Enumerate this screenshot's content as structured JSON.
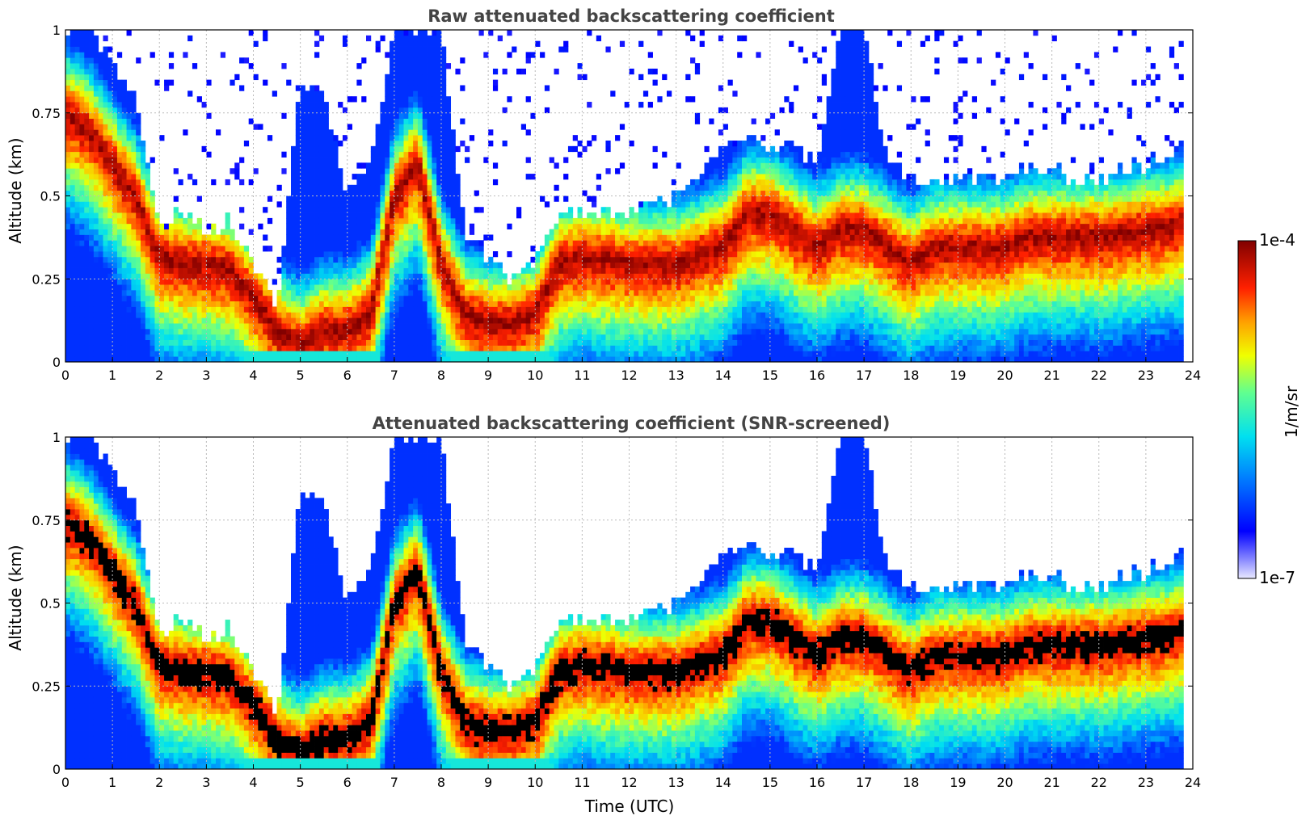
{
  "chart_data": [
    {
      "type": "heatmap",
      "title": "Raw attenuated backscattering coefficient",
      "xlabel": "",
      "ylabel": "Altitude (km)",
      "xlim": [
        0,
        24
      ],
      "ylim": [
        0,
        1
      ],
      "xticks": [
        "0",
        "1",
        "2",
        "3",
        "4",
        "5",
        "6",
        "7",
        "8",
        "9",
        "10",
        "11",
        "12",
        "13",
        "14",
        "15",
        "16",
        "17",
        "18",
        "19",
        "20",
        "21",
        "22",
        "23",
        "24"
      ],
      "yticks": [
        "0",
        "0.25",
        "0.5",
        "0.75",
        "1"
      ],
      "grid": true,
      "mode": "raw"
    },
    {
      "type": "heatmap",
      "title": "Attenuated backscattering coefficient (SNR-screened)",
      "xlabel": "Time (UTC)",
      "ylabel": "Altitude (km)",
      "xlim": [
        0,
        24
      ],
      "ylim": [
        0,
        1
      ],
      "xticks": [
        "0",
        "1",
        "2",
        "3",
        "4",
        "5",
        "6",
        "7",
        "8",
        "9",
        "10",
        "11",
        "12",
        "13",
        "14",
        "15",
        "16",
        "17",
        "18",
        "19",
        "20",
        "21",
        "22",
        "23",
        "24"
      ],
      "yticks": [
        "0",
        "0.25",
        "0.5",
        "0.75",
        "1"
      ],
      "grid": true,
      "mode": "screened"
    }
  ],
  "colorbar": {
    "label": "1/m/sr",
    "max_label": "1e-4",
    "min_label": "1e-7",
    "log_min": -7,
    "log_max": -4
  },
  "field_profile": {
    "description_free": true,
    "times": [
      0,
      0.5,
      1,
      1.5,
      2,
      2.5,
      3,
      3.5,
      4,
      4.5,
      5,
      5.5,
      6,
      6.5,
      7,
      7.5,
      8,
      8.5,
      9,
      9.5,
      10,
      10.5,
      11,
      12,
      13,
      14,
      14.5,
      15,
      15.5,
      16,
      16.5,
      17,
      17.5,
      18,
      18.5,
      19,
      20,
      20.5,
      21,
      21.5,
      22,
      23,
      23.8
    ],
    "layer_center_km": [
      0.75,
      0.7,
      0.6,
      0.5,
      0.32,
      0.3,
      0.3,
      0.28,
      0.2,
      0.1,
      0.05,
      0.1,
      0.1,
      0.15,
      0.5,
      0.6,
      0.3,
      0.15,
      0.12,
      0.12,
      0.15,
      0.3,
      0.32,
      0.3,
      0.3,
      0.35,
      0.45,
      0.45,
      0.4,
      0.35,
      0.4,
      0.4,
      0.35,
      0.3,
      0.35,
      0.35,
      0.35,
      0.38,
      0.38,
      0.38,
      0.38,
      0.4,
      0.42
    ],
    "layer_top_km": [
      1,
      1,
      0.9,
      0.8,
      0.4,
      0.45,
      0.4,
      0.42,
      0.3,
      0.15,
      0.85,
      0.8,
      0.5,
      0.6,
      1,
      1,
      1,
      0.4,
      0.3,
      0.25,
      0.3,
      0.45,
      0.45,
      0.45,
      0.5,
      0.65,
      0.67,
      0.65,
      0.65,
      0.6,
      1,
      1,
      0.6,
      0.55,
      0.55,
      0.55,
      0.55,
      0.6,
      0.58,
      0.55,
      0.55,
      0.6,
      0.65
    ]
  }
}
